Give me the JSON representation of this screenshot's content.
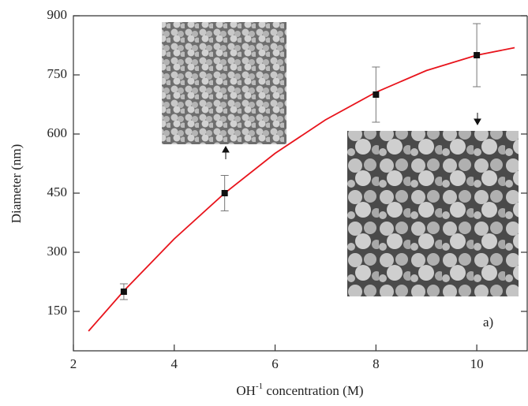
{
  "chart_data": {
    "type": "scatter",
    "ylabel": "Diameter (nm)",
    "xlabel": {
      "base": "OH",
      "sup": "-1",
      "rest": " concentration (M)"
    },
    "annotation": "a)",
    "xlim": [
      2,
      11
    ],
    "xticks": [
      2,
      4,
      6,
      8,
      10
    ],
    "ylim": [
      50,
      900
    ],
    "yticks": [
      150,
      300,
      450,
      600,
      750,
      900
    ],
    "series": [
      {
        "x": [
          3,
          5,
          8,
          10
        ],
        "values": [
          200,
          450,
          700,
          800
        ],
        "errors": [
          20,
          45,
          70,
          80
        ],
        "color": "#111111",
        "style": "marker"
      },
      {
        "x": [
          2.3,
          3,
          4,
          5,
          6,
          7,
          8,
          9,
          10,
          10.75
        ],
        "values": [
          100,
          202,
          334,
          450,
          551,
          636,
          706,
          761,
          800,
          819
        ],
        "color": "#e8141c",
        "style": "line"
      }
    ]
  }
}
